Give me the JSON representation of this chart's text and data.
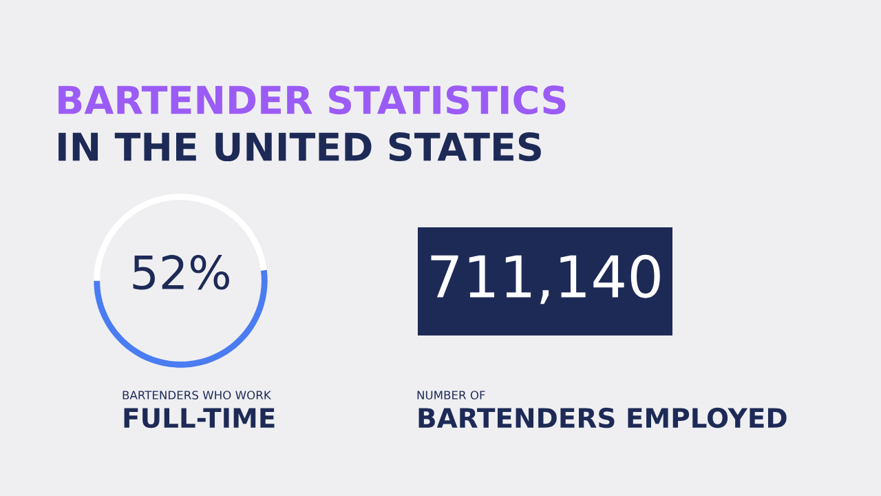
{
  "chart_data": [
    {
      "type": "donut",
      "title": "BARTENDER STATISTICS",
      "subtitle": "IN THE UNITED STATES",
      "categories": [
        null,
        null
      ],
      "values": [
        52,
        48
      ],
      "colors": [
        "#4a7cf2",
        "#ffffff"
      ],
      "annotations": [
        "52%",
        "BARTENDERS WHO WORK",
        "FULL-TIME"
      ]
    },
    {
      "type": "other",
      "annotations": [
        "711,140",
        "NUMBER OF",
        "BARTENDERS EMPLOYED"
      ]
    }
  ]
}
